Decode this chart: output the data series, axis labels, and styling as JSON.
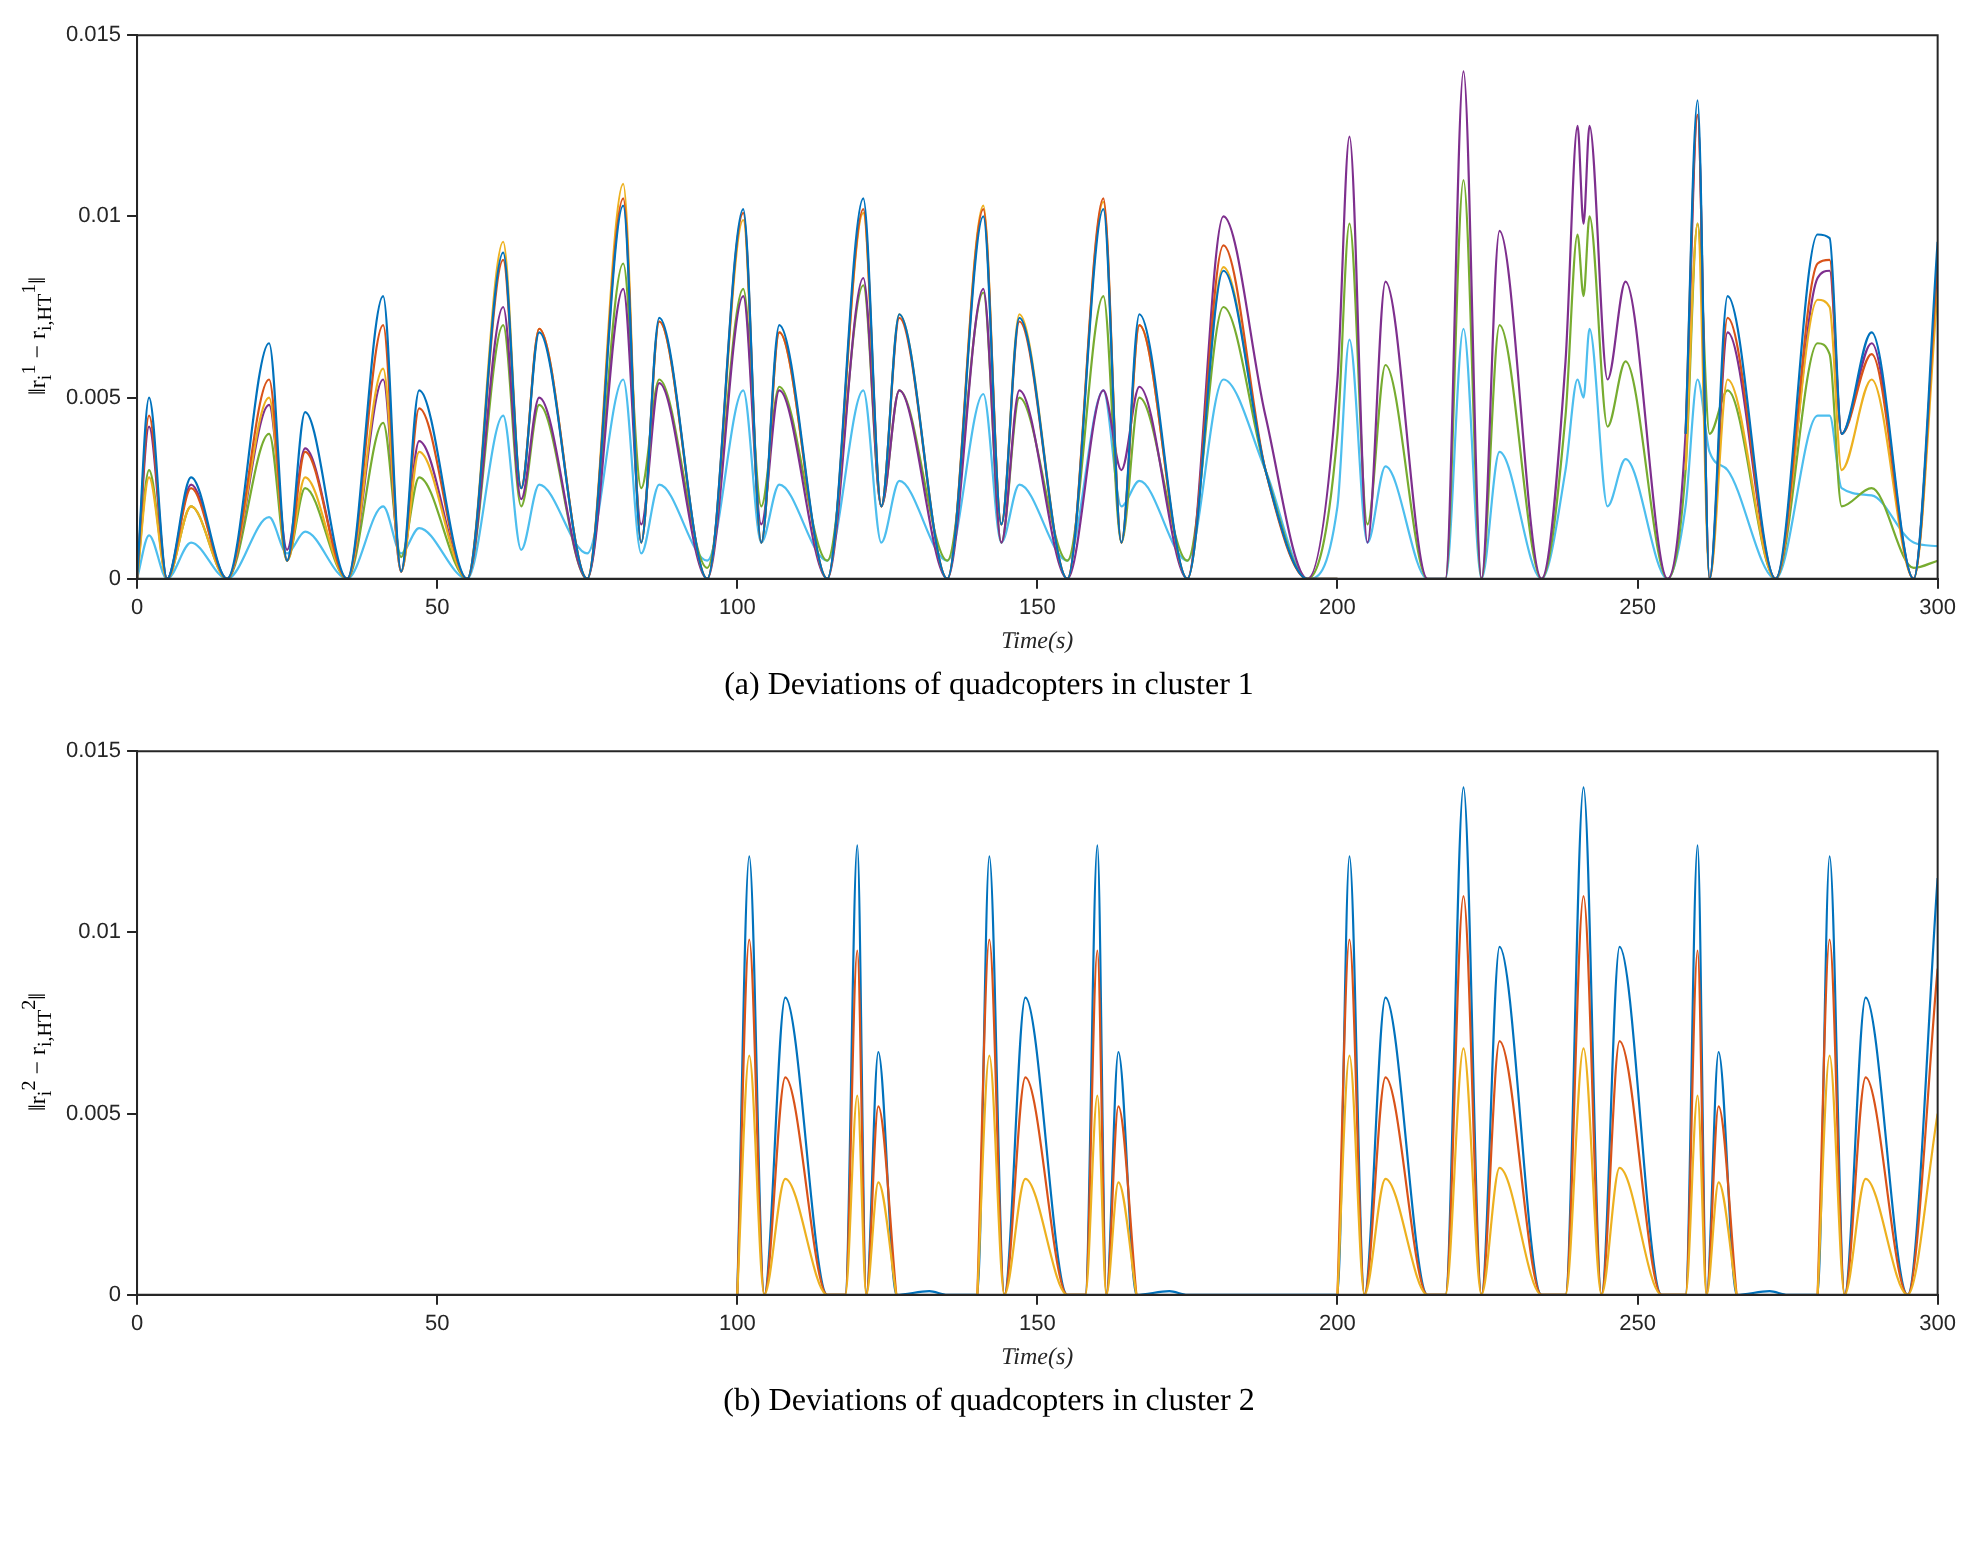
{
  "chart_data": [
    {
      "type": "line",
      "title": "(a) Deviations of quadcopters in cluster 1",
      "xlabel": "Time(s)",
      "ylabel": "‖r$_{i}$$^{1}$ − r$_{i,HT}$$^{1}$‖",
      "xlim": [
        0,
        300
      ],
      "xticks": [
        0,
        50,
        100,
        150,
        200,
        250,
        300
      ],
      "ylim": [
        0,
        0.015
      ],
      "yticks": [
        0,
        0.005,
        0.01,
        0.015
      ],
      "marker": "none",
      "x": [
        0,
        2,
        5,
        9,
        15,
        22,
        25,
        28,
        35,
        41,
        44,
        47,
        55,
        61,
        64,
        67,
        75,
        81,
        84,
        87,
        95,
        101,
        104,
        107,
        115,
        121,
        124,
        127,
        135,
        141,
        144,
        147,
        155,
        161,
        164,
        167,
        175,
        181,
        188,
        195,
        200,
        202,
        205,
        208,
        215,
        218,
        221,
        224,
        227,
        234,
        238,
        240,
        241,
        242,
        245,
        248,
        255,
        258,
        260,
        262,
        265,
        273,
        280,
        282,
        284,
        289,
        296,
        300
      ],
      "series": [
        {
          "color": "#0072bd",
          "values": [
            0,
            0.005,
            0,
            0.0028,
            0,
            0.0065,
            0.0005,
            0.0046,
            0,
            0.0078,
            0.0002,
            0.0052,
            0,
            0.009,
            0.0025,
            0.0068,
            0,
            0.0103,
            0.001,
            0.0072,
            0,
            0.0102,
            0.001,
            0.007,
            0,
            0.0105,
            0.002,
            0.0073,
            0,
            0.01,
            0.0015,
            0.0072,
            0,
            0.0102,
            0.001,
            0.0073,
            0,
            0.0085,
            0.003,
            0,
            0,
            null,
            null,
            null,
            null,
            null,
            null,
            null,
            null,
            null,
            null,
            null,
            null,
            null,
            null,
            null,
            null,
            0.004,
            0.0132,
            0,
            0.0078,
            0,
            0.0095,
            0.0094,
            0.004,
            0.0068,
            0,
            0.0093
          ]
        },
        {
          "color": "#d95319",
          "values": [
            0,
            0.0045,
            0,
            0.0025,
            0,
            0.0055,
            0.0005,
            0.0035,
            0,
            0.007,
            0.0002,
            0.0047,
            0,
            0.0088,
            0.0025,
            0.0069,
            0,
            0.0105,
            0.001,
            0.0071,
            0,
            0.0101,
            0.001,
            0.0068,
            0,
            0.0102,
            0.002,
            0.0072,
            0,
            0.0102,
            0.0015,
            0.0071,
            0,
            0.0105,
            0.001,
            0.007,
            0,
            0.0092,
            0.003,
            0,
            0,
            null,
            null,
            null,
            null,
            null,
            null,
            null,
            null,
            null,
            null,
            null,
            null,
            null,
            null,
            null,
            null,
            0.004,
            0.0128,
            0,
            0.0072,
            0,
            0.0087,
            0.0088,
            0.004,
            0.0062,
            0,
            0.0088
          ]
        },
        {
          "color": "#edb120",
          "values": [
            0,
            0.0028,
            0,
            0.002,
            0,
            0.005,
            0.0005,
            0.0028,
            0,
            0.0058,
            0.0002,
            0.0035,
            0,
            0.0093,
            0.0025,
            0.0069,
            0,
            0.0109,
            0.001,
            0.0071,
            0,
            0.0099,
            0.001,
            0.0068,
            0,
            0.0101,
            0.002,
            0.0073,
            0,
            0.0103,
            0.0015,
            0.0073,
            0,
            0.0104,
            0.001,
            0.007,
            0,
            0.0086,
            0.003,
            0,
            0,
            null,
            null,
            null,
            null,
            null,
            null,
            null,
            null,
            null,
            null,
            null,
            null,
            null,
            null,
            null,
            null,
            0.003,
            0.0098,
            0,
            0.0055,
            0,
            0.0077,
            0.0075,
            0.003,
            0.0055,
            0,
            0.008
          ]
        },
        {
          "color": "#7e2f8e",
          "values": [
            0,
            0.0042,
            0,
            0.0026,
            0,
            0.0048,
            0.0008,
            0.0036,
            0,
            0.0055,
            0.0002,
            0.0038,
            0,
            0.0075,
            0.0022,
            0.005,
            0,
            0.008,
            0.0015,
            0.0054,
            0,
            0.0078,
            0.0015,
            0.0052,
            0,
            0.0083,
            0.002,
            0.0052,
            0,
            0.008,
            0.001,
            0.0052,
            0,
            0.0052,
            0.003,
            0.0053,
            0,
            0.01,
            0.0045,
            0,
            0.0055,
            0.0122,
            0.001,
            0.0082,
            0,
            0,
            0.014,
            0,
            0.0096,
            0,
            0.006,
            0.0125,
            0.0098,
            0.0125,
            0.0055,
            0.0082,
            0,
            0.004,
            0.0128,
            0,
            0.0068,
            0,
            0.0083,
            0.0085,
            0.004,
            0.0065,
            0,
            0.0087
          ]
        },
        {
          "color": "#77ac30",
          "values": [
            0,
            0.003,
            0,
            0.002,
            0,
            0.004,
            0.0005,
            0.0025,
            0,
            0.0043,
            0.0006,
            0.0028,
            0,
            0.007,
            0.002,
            0.0048,
            0,
            0.0087,
            0.0025,
            0.0055,
            0.0003,
            0.008,
            0.002,
            0.0053,
            0.0005,
            0.0081,
            0.002,
            0.0052,
            0.0005,
            0.0079,
            0.001,
            0.005,
            0.0005,
            0.0078,
            0.001,
            0.005,
            0.0005,
            0.0075,
            0.003,
            0,
            0.004,
            0.0098,
            0.0015,
            0.0059,
            0,
            0,
            0.011,
            0,
            0.007,
            0,
            0.0045,
            0.0095,
            0.0078,
            0.01,
            0.0042,
            0.006,
            0,
            0.003,
            0.0098,
            0.004,
            0.0052,
            0,
            0.0065,
            0.0062,
            0.002,
            0.0025,
            0.0003,
            0.0005
          ]
        },
        {
          "color": "#4dbeee",
          "values": [
            0,
            0.0012,
            0,
            0.001,
            0,
            0.0017,
            0.0007,
            0.0013,
            0,
            0.002,
            0.0007,
            0.0014,
            0,
            0.0045,
            0.0008,
            0.0026,
            0.0007,
            0.0055,
            0.0007,
            0.0026,
            0.0005,
            0.0052,
            0.001,
            0.0026,
            0.0005,
            0.0052,
            0.001,
            0.0027,
            0.0005,
            0.0051,
            0.001,
            0.0026,
            0.0005,
            0.0052,
            0.002,
            0.0027,
            0.0005,
            0.0055,
            0.003,
            0,
            0.002,
            0.0066,
            0.001,
            0.0031,
            0,
            0,
            0.0069,
            0,
            0.0035,
            0,
            0.003,
            0.0055,
            0.005,
            0.0069,
            0.002,
            0.0033,
            0,
            0.002,
            0.0055,
            0.0035,
            0.003,
            0,
            0.0045,
            0.0045,
            0.0025,
            0.0023,
            0.001,
            0.0009
          ]
        }
      ]
    },
    {
      "type": "line",
      "title": "(b) Deviations of quadcopters in cluster 2",
      "xlabel": "Time(s)",
      "ylabel": "‖r$_{i}$$^{2}$ − r$_{i,HT}$$^{2}$‖",
      "xlim": [
        0,
        300
      ],
      "xticks": [
        0,
        50,
        100,
        150,
        200,
        250,
        300
      ],
      "ylim": [
        0,
        0.015
      ],
      "yticks": [
        0,
        0.005,
        0.01,
        0.015
      ],
      "marker": "none",
      "x": [
        100,
        102,
        104.5,
        108,
        115,
        118,
        120,
        121.5,
        123.5,
        126.5,
        132,
        135,
        140,
        142,
        144.5,
        148,
        155,
        158,
        160,
        161.5,
        163.5,
        166.5,
        172,
        175,
        200,
        202,
        204.5,
        208,
        215,
        218,
        221,
        224,
        227,
        234,
        238,
        241,
        244,
        247,
        254,
        258,
        260,
        261.5,
        263.5,
        266.5,
        272,
        275,
        280,
        282,
        284.5,
        288,
        295,
        300
      ],
      "series": [
        {
          "color": "#edb120",
          "values": [
            0,
            0.0066,
            0,
            0.0032,
            0,
            0,
            0.0055,
            0,
            0.0031,
            0,
            null,
            null,
            0,
            0.0066,
            0,
            0.0032,
            0,
            0,
            0.0055,
            0,
            0.0031,
            0,
            null,
            null,
            0,
            0.0066,
            0,
            0.0032,
            0,
            0,
            0.0068,
            0,
            0.0035,
            0,
            0,
            0.0068,
            0,
            0.0035,
            0,
            0,
            0.0055,
            0,
            0.0031,
            0,
            null,
            null,
            0,
            0.0066,
            0,
            0.0032,
            0,
            0.005
          ]
        },
        {
          "color": "#d95319",
          "values": [
            0,
            0.0098,
            0,
            0.006,
            0,
            0,
            0.0095,
            0,
            0.0052,
            0,
            null,
            null,
            0,
            0.0098,
            0,
            0.006,
            0,
            0,
            0.0095,
            0,
            0.0052,
            0,
            null,
            null,
            0,
            0.0098,
            0,
            0.006,
            0,
            0,
            0.011,
            0,
            0.007,
            0,
            0,
            0.011,
            0,
            0.007,
            0,
            0,
            0.0095,
            0,
            0.0052,
            0,
            null,
            null,
            0,
            0.0098,
            0,
            0.006,
            0,
            0.009
          ]
        },
        {
          "color": "#0072bd",
          "values": [
            0,
            0.0121,
            0,
            0.0082,
            0,
            0,
            0.0124,
            0,
            0.0067,
            0,
            0.0001,
            0,
            0,
            0.0121,
            0,
            0.0082,
            0,
            0,
            0.0124,
            0,
            0.0067,
            0,
            0.0001,
            0,
            0,
            0.0121,
            0,
            0.0082,
            0,
            0,
            0.014,
            0,
            0.0096,
            0,
            0,
            0.014,
            0,
            0.0096,
            0,
            0,
            0.0124,
            0,
            0.0067,
            0,
            0.0001,
            0,
            0,
            0.0121,
            0,
            0.0082,
            0,
            0.0115
          ]
        }
      ]
    }
  ]
}
